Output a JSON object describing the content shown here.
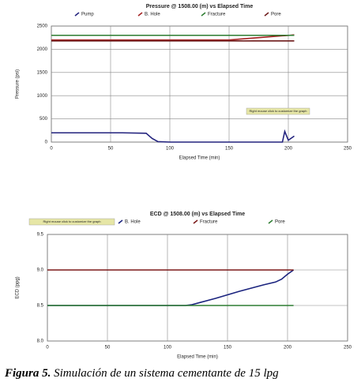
{
  "chart_data": [
    {
      "type": "line",
      "title": "Pressure @ 1508.00 (m) vs Elapsed Time",
      "x_label": "Elapsed Time (min)",
      "y_label": "Pressure (psi)",
      "annotation": "Right mouse click to customize the graph",
      "x": [
        0,
        20,
        40,
        60,
        80,
        85,
        90,
        100,
        120,
        140,
        150,
        160,
        180,
        195,
        197,
        200,
        205
      ],
      "series": [
        {
          "name": "Pump",
          "color": "#23237e",
          "values": [
            200,
            200,
            200,
            200,
            190,
            80,
            10,
            0,
            0,
            0,
            0,
            0,
            0,
            0,
            230,
            40,
            130
          ]
        },
        {
          "name": "B. Hole",
          "color": "#a32020",
          "values": [
            2200,
            2200,
            2200,
            2200,
            2200,
            2200,
            2200,
            2200,
            2200,
            2200,
            2200,
            2220,
            2260,
            2290,
            2293,
            2298,
            2310
          ]
        },
        {
          "name": "Fracture",
          "color": "#2e7d32",
          "values": [
            2300,
            2300,
            2300,
            2300,
            2300,
            2300,
            2300,
            2300,
            2300,
            2300,
            2300,
            2300,
            2300,
            2300,
            2300,
            2300,
            2300
          ]
        },
        {
          "name": "Pore",
          "color": "#6e1b1b",
          "values": [
            2180,
            2180,
            2180,
            2180,
            2180,
            2180,
            2180,
            2180,
            2180,
            2180,
            2180,
            2180,
            2180,
            2180,
            2180,
            2180,
            2180
          ]
        }
      ],
      "xlim": [
        0,
        250
      ],
      "xticks": [
        0,
        50,
        100,
        150,
        200,
        250
      ],
      "ylim": [
        0,
        2500
      ],
      "yticks": [
        0,
        500,
        1000,
        1500,
        2000,
        2500
      ],
      "grid": true
    },
    {
      "type": "line",
      "title": "ECD @ 1508.00 (m) vs Elapsed Time",
      "x_label": "Elapsed Time (min)",
      "y_label": "ECD (ppg)",
      "annotation": "Right mouse click to customize the graph",
      "x": [
        0,
        100,
        115,
        120,
        140,
        160,
        180,
        190,
        195,
        200,
        205
      ],
      "series": [
        {
          "name": "B. Hole",
          "color": "#1a237e",
          "values": [
            8.5,
            8.5,
            8.5,
            8.51,
            8.6,
            8.7,
            8.79,
            8.83,
            8.87,
            8.94,
            9.0
          ]
        },
        {
          "name": "Fracture",
          "color": "#7b1818",
          "values": [
            9.0,
            9.0,
            9.0,
            9.0,
            9.0,
            9.0,
            9.0,
            9.0,
            9.0,
            9.0,
            9.0
          ]
        },
        {
          "name": "Pore",
          "color": "#2e7d32",
          "values": [
            8.5,
            8.5,
            8.5,
            8.5,
            8.5,
            8.5,
            8.5,
            8.5,
            8.5,
            8.5,
            8.5
          ]
        }
      ],
      "xlim": [
        0,
        250
      ],
      "xticks": [
        0,
        50,
        100,
        150,
        200,
        250
      ],
      "ylim": [
        8.0,
        9.5
      ],
      "yticks": [
        {
          "value": 8.0,
          "label": "8.0"
        },
        {
          "value": 8.5,
          "label": "8.5"
        },
        {
          "value": 9.0,
          "label": "9.0"
        },
        {
          "value": 9.5,
          "label": "9.5"
        }
      ],
      "grid": true
    }
  ],
  "caption": {
    "label": "Figura 5.",
    "text": "Simulación de un sistema cementante de 15 lpg"
  }
}
